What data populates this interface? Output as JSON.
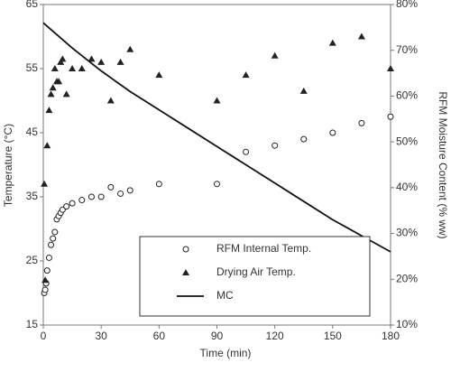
{
  "chart_data": {
    "type": "scatter",
    "x_label": "Time (min)",
    "y_label": "Temperature (°C)",
    "y2_label": "RFM  Moisture Content (% ww)",
    "xlim": [
      0,
      180
    ],
    "xticks": [
      0,
      30,
      60,
      90,
      120,
      150,
      180
    ],
    "ylim": [
      15,
      65
    ],
    "yticks": [
      15,
      25,
      35,
      45,
      55,
      65
    ],
    "y2lim": [
      10,
      80
    ],
    "y2ticks": [
      {
        "value": 10,
        "label": "10%"
      },
      {
        "value": 20,
        "label": "20%"
      },
      {
        "value": 30,
        "label": "30%"
      },
      {
        "value": 40,
        "label": "40%"
      },
      {
        "value": 50,
        "label": "50%"
      },
      {
        "value": 60,
        "label": "60%"
      },
      {
        "value": 70,
        "label": "70%"
      },
      {
        "value": 80,
        "label": "80%"
      }
    ],
    "series": [
      {
        "name": "RFM Internal Temp.",
        "marker": "circle",
        "color": "#222222",
        "x": [
          0.5,
          1,
          1.5,
          2,
          3,
          4,
          5,
          6,
          7,
          8,
          9,
          10,
          12,
          15,
          20,
          25,
          30,
          35,
          40,
          45,
          60,
          90,
          105,
          120,
          135,
          150,
          165,
          180
        ],
        "values": [
          20,
          20.5,
          21.5,
          23.5,
          25.5,
          27.5,
          28.5,
          29.5,
          31.5,
          32,
          32.5,
          33,
          33.5,
          34,
          34.5,
          35,
          35,
          36.5,
          35.5,
          36,
          37,
          37,
          42,
          43,
          44,
          45,
          46.5,
          47.5
        ]
      },
      {
        "name": "Drying Air Temp.",
        "marker": "triangle",
        "color": "#222222",
        "x": [
          0.5,
          1,
          2,
          3,
          4,
          5,
          6,
          7,
          8,
          9,
          10,
          12,
          15,
          20,
          25,
          30,
          35,
          40,
          45,
          60,
          90,
          105,
          120,
          135,
          150,
          165,
          180
        ],
        "values": [
          37,
          22,
          43,
          48.5,
          51,
          52,
          55,
          53,
          53,
          56,
          56.5,
          51,
          55,
          55,
          56.5,
          56,
          50,
          56,
          58,
          54,
          50,
          54,
          57,
          51.5,
          59,
          60,
          55
        ]
      },
      {
        "name": "MC",
        "marker": "line",
        "color": "#111111",
        "axis": "y2",
        "x": [
          0,
          15,
          30,
          45,
          60,
          75,
          90,
          105,
          120,
          135,
          150,
          165,
          180
        ],
        "values": [
          76,
          70.5,
          65.5,
          61,
          57,
          53,
          49,
          45,
          41,
          37,
          33,
          29.5,
          26
        ]
      }
    ]
  }
}
